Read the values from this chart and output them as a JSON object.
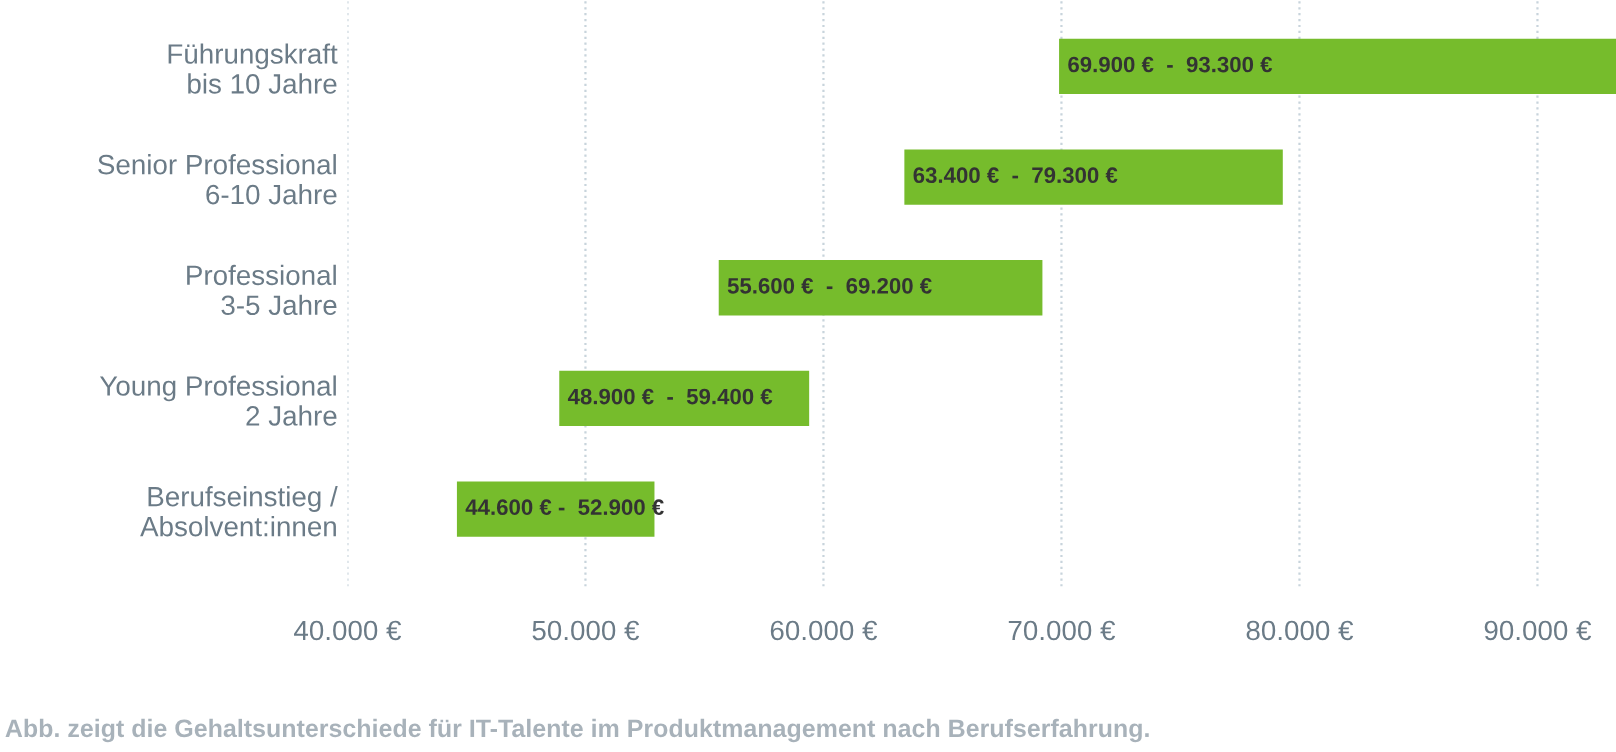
{
  "chart_data": {
    "type": "bar",
    "orientation": "horizontal",
    "categories": [
      "Führungskraft\nbis 10 Jahre",
      "Senior Professional\n6-10 Jahre",
      "Professional\n3-5 Jahre",
      "Young Professional\n2 Jahre",
      "Berufseinstieg /\nAbsolvent:innen"
    ],
    "base": [
      69900,
      63400,
      55600,
      48900,
      44600
    ],
    "values": [
      23400,
      15900,
      13600,
      10500,
      8300
    ],
    "color": "#76bc2c",
    "xlim": [
      40000,
      93300
    ],
    "xticks": [
      {
        "value": 40000,
        "label": "40.000 €"
      },
      {
        "value": 50000,
        "label": "50.000 €"
      },
      {
        "value": 60000,
        "label": "60.000 €"
      },
      {
        "value": 70000,
        "label": "70.000 €"
      },
      {
        "value": 80000,
        "label": "80.000 €"
      },
      {
        "value": 90000,
        "label": "90.000 €"
      }
    ],
    "grid": "x",
    "annotations": [
      {
        "text": "69.900 €  -  93.300 €",
        "x": 69900,
        "y": "Führungskraft\nbis 10 Jahre"
      },
      {
        "text": "63.400 €  -  79.300 €",
        "x": 63400,
        "y": "Senior Professional\n6-10 Jahre"
      },
      {
        "text": "55.600 €  -  69.200 €",
        "x": 55600,
        "y": "Professional\n3-5 Jahre"
      },
      {
        "text": "48.900 €  -  59.400 €",
        "x": 48900,
        "y": "Young Professional\n2 Jahre"
      },
      {
        "text": "44.600 € -  52.900 €",
        "x": 44600,
        "y": "Berufseinstieg /\nAbsolvent:innen"
      },
      "Abb. zeigt die Gehaltsunterschiede für IT-Talente im Produktmanagement nach Berufserfahrung."
    ]
  }
}
